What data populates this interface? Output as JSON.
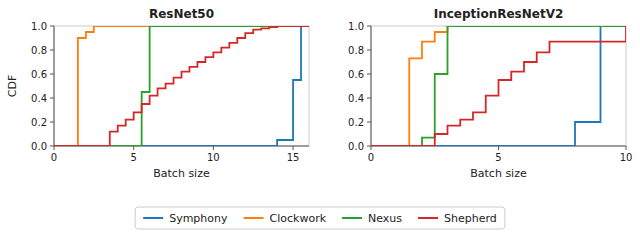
{
  "chart_data": [
    {
      "type": "step",
      "title": "ResNet50",
      "x_label": "Batch size",
      "y_label": "CDF",
      "legend": "bottom",
      "xlim": [
        0,
        16
      ],
      "xticks": [
        0,
        5,
        10,
        15
      ],
      "ylim": [
        0.0,
        1.0
      ],
      "yticks": [
        {
          "value": 0.0,
          "label": "0.0"
        },
        0.2,
        0.4,
        0.6,
        0.8,
        {
          "value": 1.0,
          "label": "1.0"
        }
      ],
      "series": [
        {
          "name": "Symphony",
          "color": "#1f77b4",
          "x": [
            0,
            13.5,
            14,
            15,
            15.5,
            16
          ],
          "values": [
            0.0,
            0.0,
            0.05,
            0.55,
            1.0,
            1.0
          ]
        },
        {
          "name": "Clockwork",
          "color": "#ff7f0e",
          "x": [
            0,
            1,
            1.5,
            2,
            2.5,
            16
          ],
          "values": [
            0.0,
            0.0,
            0.9,
            0.95,
            1.0,
            1.0
          ]
        },
        {
          "name": "Nexus",
          "color": "#2ca02c",
          "x": [
            0,
            4.5,
            5,
            5.5,
            6,
            16
          ],
          "values": [
            0.0,
            0.0,
            0.0,
            0.45,
            1.0,
            1.0
          ]
        },
        {
          "name": "Shepherd",
          "color": "#d62728",
          "x": [
            0,
            3,
            3.5,
            4,
            4.5,
            5,
            5.5,
            6,
            6.5,
            7,
            7.5,
            8,
            8.5,
            9,
            9.5,
            10,
            10.5,
            11,
            11.5,
            12,
            12.5,
            13,
            13.5,
            14,
            16
          ],
          "values": [
            0.0,
            0.0,
            0.12,
            0.17,
            0.22,
            0.28,
            0.35,
            0.42,
            0.48,
            0.52,
            0.57,
            0.62,
            0.66,
            0.7,
            0.74,
            0.78,
            0.82,
            0.86,
            0.9,
            0.94,
            0.97,
            0.98,
            0.99,
            1.0,
            1.0
          ]
        }
      ]
    },
    {
      "type": "step",
      "title": "InceptionResNetV2",
      "x_label": "Batch size",
      "xlim": [
        0,
        10
      ],
      "xticks": [
        0,
        5,
        10
      ],
      "ylim": [
        0.0,
        1.0
      ],
      "yticks": [
        {
          "value": 0.0,
          "label": "0.0"
        },
        0.2,
        0.4,
        0.6,
        0.8,
        {
          "value": 1.0,
          "label": "1.0"
        }
      ],
      "series": [
        {
          "name": "Symphony",
          "color": "#1f77b4",
          "x": [
            0,
            7,
            7.5,
            8,
            8.5,
            9,
            10
          ],
          "values": [
            0.0,
            0.0,
            0.0,
            0.2,
            0.2,
            1.0,
            1.0
          ]
        },
        {
          "name": "Clockwork",
          "color": "#ff7f0e",
          "x": [
            0,
            1,
            1.5,
            2,
            2.5,
            3,
            10
          ],
          "values": [
            0.0,
            0.0,
            0.73,
            0.87,
            0.95,
            1.0,
            1.0
          ]
        },
        {
          "name": "Nexus",
          "color": "#2ca02c",
          "x": [
            0,
            1.5,
            2,
            2.5,
            3,
            10
          ],
          "values": [
            0.0,
            0.0,
            0.07,
            0.6,
            1.0,
            1.0
          ]
        },
        {
          "name": "Shepherd",
          "color": "#d62728",
          "x": [
            0,
            2,
            2.5,
            3,
            3.5,
            4,
            4.5,
            5,
            5.5,
            6,
            6.5,
            7,
            10
          ],
          "values": [
            0.0,
            0.0,
            0.1,
            0.17,
            0.22,
            0.28,
            0.42,
            0.55,
            0.62,
            0.7,
            0.78,
            0.87,
            1.0
          ]
        }
      ]
    }
  ]
}
